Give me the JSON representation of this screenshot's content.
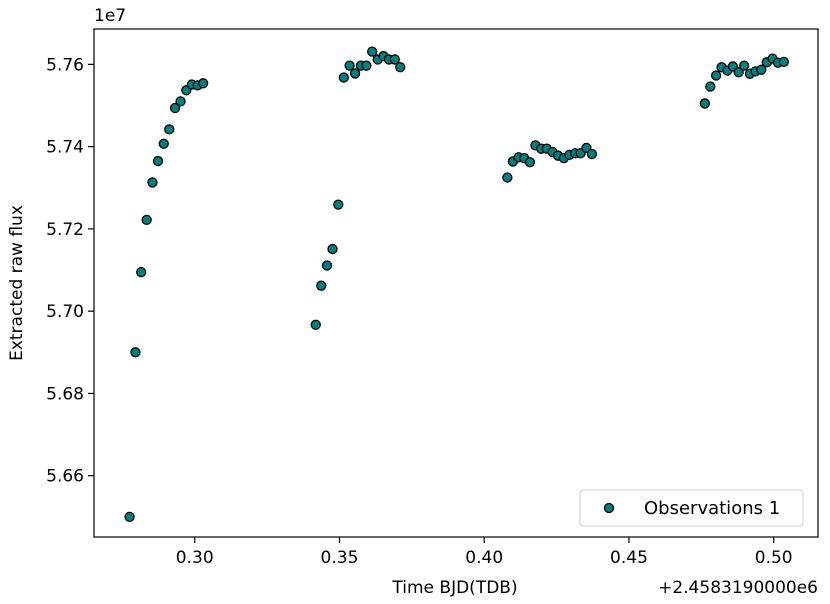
{
  "chart_data": {
    "type": "scatter",
    "title": "",
    "xlabel": "Time BJD(TDB)",
    "ylabel": "Extracted raw flux",
    "x_offset_label": "+2.4583190000e6",
    "y_scale_label": "1e7",
    "xlim": [
      0.2652,
      0.5153
    ],
    "ylim": [
      5.6451,
      5.7686
    ],
    "xticks": [
      0.3,
      0.35,
      0.4,
      0.45,
      0.5
    ],
    "xtick_labels": [
      "0.30",
      "0.35",
      "0.40",
      "0.45",
      "0.50"
    ],
    "yticks": [
      5.66,
      5.68,
      5.7,
      5.72,
      5.74,
      5.76
    ],
    "ytick_labels": [
      "5.66",
      "5.68",
      "5.70",
      "5.72",
      "5.74",
      "5.76"
    ],
    "grid": false,
    "legend": {
      "position": "lower-right",
      "entries": [
        "Observations 1"
      ]
    },
    "series": [
      {
        "name": "Observations 1",
        "color": "#008080",
        "edge_color": "#000000",
        "points": [
          [
            0.2775,
            5.65
          ],
          [
            0.2795,
            5.69
          ],
          [
            0.2815,
            5.7095
          ],
          [
            0.2834,
            5.7222
          ],
          [
            0.2854,
            5.7313
          ],
          [
            0.2873,
            5.7365
          ],
          [
            0.2893,
            5.7407
          ],
          [
            0.2912,
            5.7442
          ],
          [
            0.2932,
            5.7494
          ],
          [
            0.2951,
            5.751
          ],
          [
            0.2971,
            5.7537
          ],
          [
            0.299,
            5.7551
          ],
          [
            0.301,
            5.7549
          ],
          [
            0.3029,
            5.7554
          ],
          [
            0.3418,
            5.6967
          ],
          [
            0.3437,
            5.7062
          ],
          [
            0.3457,
            5.7111
          ],
          [
            0.3476,
            5.7151
          ],
          [
            0.3496,
            5.7259
          ],
          [
            0.3515,
            5.7568
          ],
          [
            0.3535,
            5.7597
          ],
          [
            0.3554,
            5.7578
          ],
          [
            0.3574,
            5.7597
          ],
          [
            0.3593,
            5.7597
          ],
          [
            0.3613,
            5.7631
          ],
          [
            0.3632,
            5.7612
          ],
          [
            0.3652,
            5.762
          ],
          [
            0.3671,
            5.7612
          ],
          [
            0.3691,
            5.7612
          ],
          [
            0.371,
            5.7593
          ],
          [
            0.408,
            5.7325
          ],
          [
            0.4099,
            5.7364
          ],
          [
            0.4119,
            5.7374
          ],
          [
            0.4138,
            5.7372
          ],
          [
            0.4158,
            5.7362
          ],
          [
            0.4177,
            5.7403
          ],
          [
            0.4197,
            5.7395
          ],
          [
            0.4216,
            5.7395
          ],
          [
            0.4236,
            5.7387
          ],
          [
            0.4255,
            5.7378
          ],
          [
            0.4275,
            5.7372
          ],
          [
            0.4294,
            5.738
          ],
          [
            0.4314,
            5.7384
          ],
          [
            0.4333,
            5.7384
          ],
          [
            0.4353,
            5.7397
          ],
          [
            0.4372,
            5.7382
          ],
          [
            0.4762,
            5.7505
          ],
          [
            0.4781,
            5.7546
          ],
          [
            0.4801,
            5.7573
          ],
          [
            0.482,
            5.7593
          ],
          [
            0.484,
            5.7585
          ],
          [
            0.4859,
            5.7595
          ],
          [
            0.4879,
            5.7581
          ],
          [
            0.4898,
            5.7597
          ],
          [
            0.4918,
            5.7577
          ],
          [
            0.4937,
            5.7583
          ],
          [
            0.4957,
            5.7587
          ],
          [
            0.4976,
            5.7605
          ],
          [
            0.4996,
            5.7614
          ],
          [
            0.5015,
            5.7604
          ],
          [
            0.5035,
            5.7606
          ]
        ]
      }
    ]
  }
}
